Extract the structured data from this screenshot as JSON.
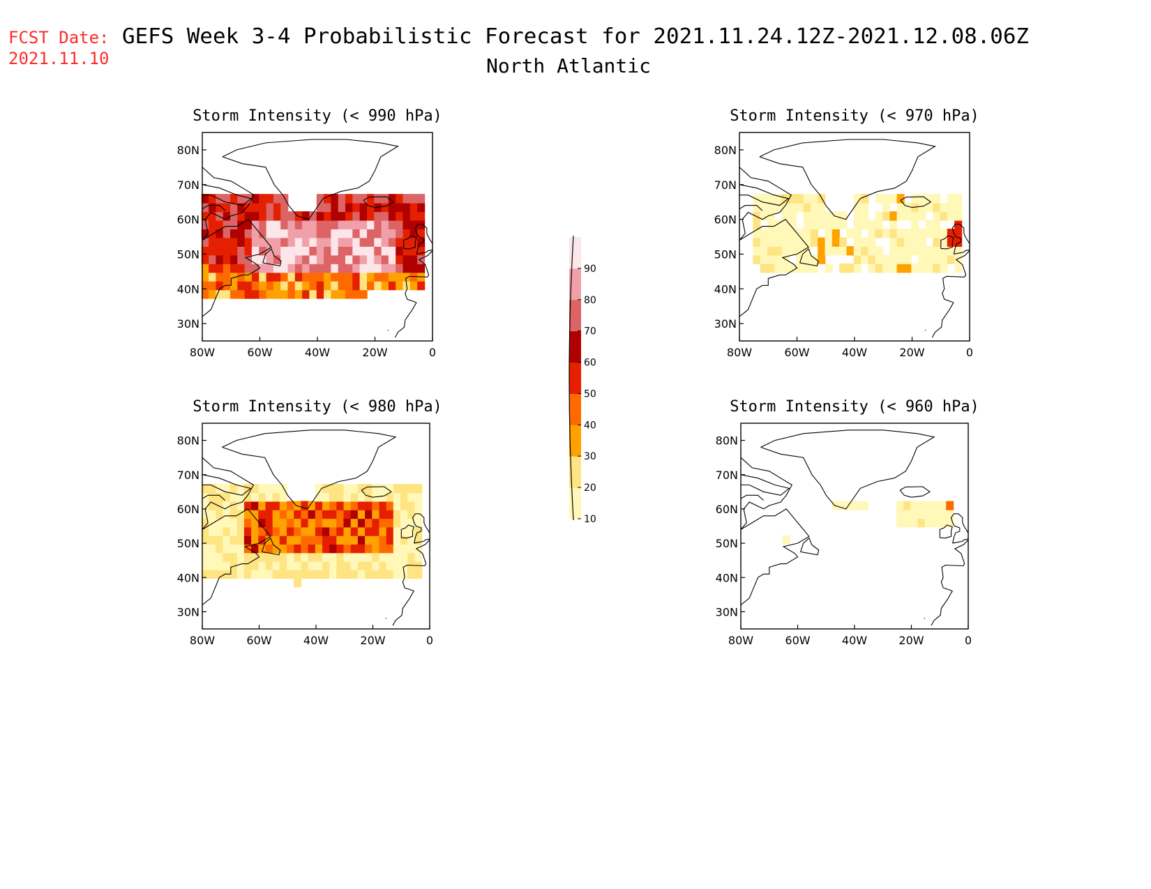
{
  "header": {
    "fcst_label": "FCST Date:",
    "fcst_date": "2021.11.10",
    "title": "GEFS Week 3-4 Probabilistic Forecast for 2021.11.24.12Z-2021.12.08.06Z",
    "subtitle": "North Atlantic",
    "fcst_color": "#ff2a2a"
  },
  "panels": [
    {
      "title": "Storm Intensity (< 990 hPa)",
      "level": "990"
    },
    {
      "title": "Storm Intensity (< 970 hPa)",
      "level": "970"
    },
    {
      "title": "Storm Intensity (< 980 hPa)",
      "level": "980"
    },
    {
      "title": "Storm Intensity (< 960 hPa)",
      "level": "960"
    }
  ],
  "axes": {
    "lon_ticks": [
      "80W",
      "60W",
      "40W",
      "20W",
      "0"
    ],
    "lat_ticks": [
      "80N",
      "70N",
      "60N",
      "50N",
      "40N",
      "30N"
    ]
  },
  "colorbar": {
    "labels": [
      "10",
      "20",
      "30",
      "40",
      "50",
      "60",
      "70",
      "80",
      "90"
    ],
    "colors": [
      "#fff8b8",
      "#fee483",
      "#ffa200",
      "#ff6a00",
      "#e42000",
      "#b00000",
      "#dc6464",
      "#f0a0a8",
      "#fce6ea"
    ]
  }
}
